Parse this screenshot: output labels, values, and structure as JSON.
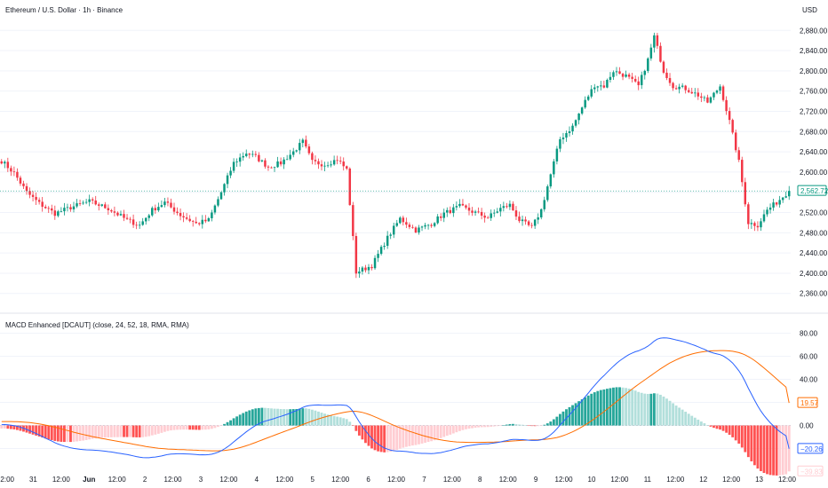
{
  "header": {
    "title": "Ethereum / U.S. Dollar · 1h · Binance",
    "currency": "USD"
  },
  "indicator": {
    "title": "MACD Enhanced [DCAUT] (close, 24, 52, 18, RMA, RMA)"
  },
  "colors": {
    "up": "#089981",
    "down": "#F23645",
    "macd_line": "#2962FF",
    "signal_line": "#FF6D00",
    "hist_pos_strong": "#26A69A",
    "hist_pos_weak": "#B2DFDB",
    "hist_neg_strong": "#FF5252",
    "hist_neg_weak": "#FFCDD2",
    "grid": "#F0F3FA",
    "text": "#131722"
  },
  "chart_data": [
    {
      "type": "candlestick",
      "name": "price",
      "y_axis_ticks": [
        2880,
        2840,
        2800,
        2760,
        2720,
        2680,
        2640,
        2600,
        2560,
        2520,
        2480,
        2440,
        2400,
        2360
      ],
      "y_axis_tick_labels": [
        "2,880.00",
        "2,840.00",
        "2,800.00",
        "2,760.00",
        "2,720.00",
        "2,680.00",
        "2,640.00",
        "2,600.00",
        "2,560.00",
        "2,520.00",
        "2,480.00",
        "2,440.00",
        "2,400.00",
        "2,360.00"
      ],
      "ylim": [
        2335,
        2905
      ],
      "last_price": 2562.72,
      "last_price_label": "2,562.72",
      "keypoints": [
        [
          0,
          2622
        ],
        [
          4,
          2598
        ],
        [
          8,
          2560
        ],
        [
          12,
          2538
        ],
        [
          17,
          2518
        ],
        [
          22,
          2530
        ],
        [
          28,
          2542
        ],
        [
          34,
          2528
        ],
        [
          40,
          2505
        ],
        [
          44,
          2495
        ],
        [
          48,
          2525
        ],
        [
          52,
          2540
        ],
        [
          57,
          2515
        ],
        [
          62,
          2498
        ],
        [
          66,
          2505
        ],
        [
          70,
          2560
        ],
        [
          74,
          2618
        ],
        [
          78,
          2638
        ],
        [
          81,
          2630
        ],
        [
          85,
          2610
        ],
        [
          89,
          2618
        ],
        [
          93,
          2640
        ],
        [
          96,
          2660
        ],
        [
          99,
          2620
        ],
        [
          103,
          2615
        ],
        [
          107,
          2625
        ],
        [
          110,
          2605
        ],
        [
          113,
          2402
        ],
        [
          118,
          2415
        ],
        [
          123,
          2470
        ],
        [
          127,
          2508
        ],
        [
          132,
          2485
        ],
        [
          137,
          2498
        ],
        [
          141,
          2518
        ],
        [
          146,
          2532
        ],
        [
          150,
          2522
        ],
        [
          155,
          2510
        ],
        [
          159,
          2528
        ],
        [
          162,
          2535
        ],
        [
          165,
          2505
        ],
        [
          169,
          2490
        ],
        [
          172,
          2525
        ],
        [
          175,
          2595
        ],
        [
          178,
          2665
        ],
        [
          182,
          2690
        ],
        [
          186,
          2740
        ],
        [
          189,
          2772
        ],
        [
          192,
          2770
        ],
        [
          195,
          2800
        ],
        [
          199,
          2790
        ],
        [
          203,
          2770
        ],
        [
          206,
          2822
        ],
        [
          208,
          2868
        ],
        [
          211,
          2800
        ],
        [
          214,
          2770
        ],
        [
          218,
          2765
        ],
        [
          222,
          2752
        ],
        [
          225,
          2738
        ],
        [
          229,
          2770
        ],
        [
          232,
          2700
        ],
        [
          235,
          2620
        ],
        [
          238,
          2500
        ],
        [
          241,
          2495
        ],
        [
          244,
          2525
        ],
        [
          247,
          2540
        ],
        [
          251,
          2562.72
        ]
      ],
      "x_tick_labels": [
        "12:00",
        "31",
        "12:00",
        "Jun",
        "12:00",
        "2",
        "12:00",
        "3",
        "12:00",
        "4",
        "12:00",
        "5",
        "12:00",
        "6",
        "12:00",
        "7",
        "12:00",
        "8",
        "12:00",
        "9",
        "12:00",
        "10",
        "12:00",
        "11",
        "12:00",
        "12",
        "12:00",
        "13",
        "12:00"
      ]
    },
    {
      "type": "macd",
      "name": "MACD Enhanced [DCAUT]",
      "params": [
        "close",
        24,
        52,
        18,
        "RMA",
        "RMA"
      ],
      "y_axis_ticks": [
        80,
        60,
        40,
        20,
        0,
        -20
      ],
      "y_axis_tick_labels": [
        "80.00",
        "60.00",
        "40.00",
        "20.00",
        "0.00",
        "-20.00"
      ],
      "ylim": [
        -35,
        92
      ],
      "last_signal": 19.57,
      "last_signal_label": "19.57",
      "last_macd": -20.26,
      "last_macd_label": "−20.26",
      "last_hist_label": "−39.83",
      "histogram_range": [
        -39.83,
        30
      ],
      "macd_line_range": [
        -28,
        76
      ],
      "signal_line_range": [
        -22,
        65
      ]
    }
  ]
}
